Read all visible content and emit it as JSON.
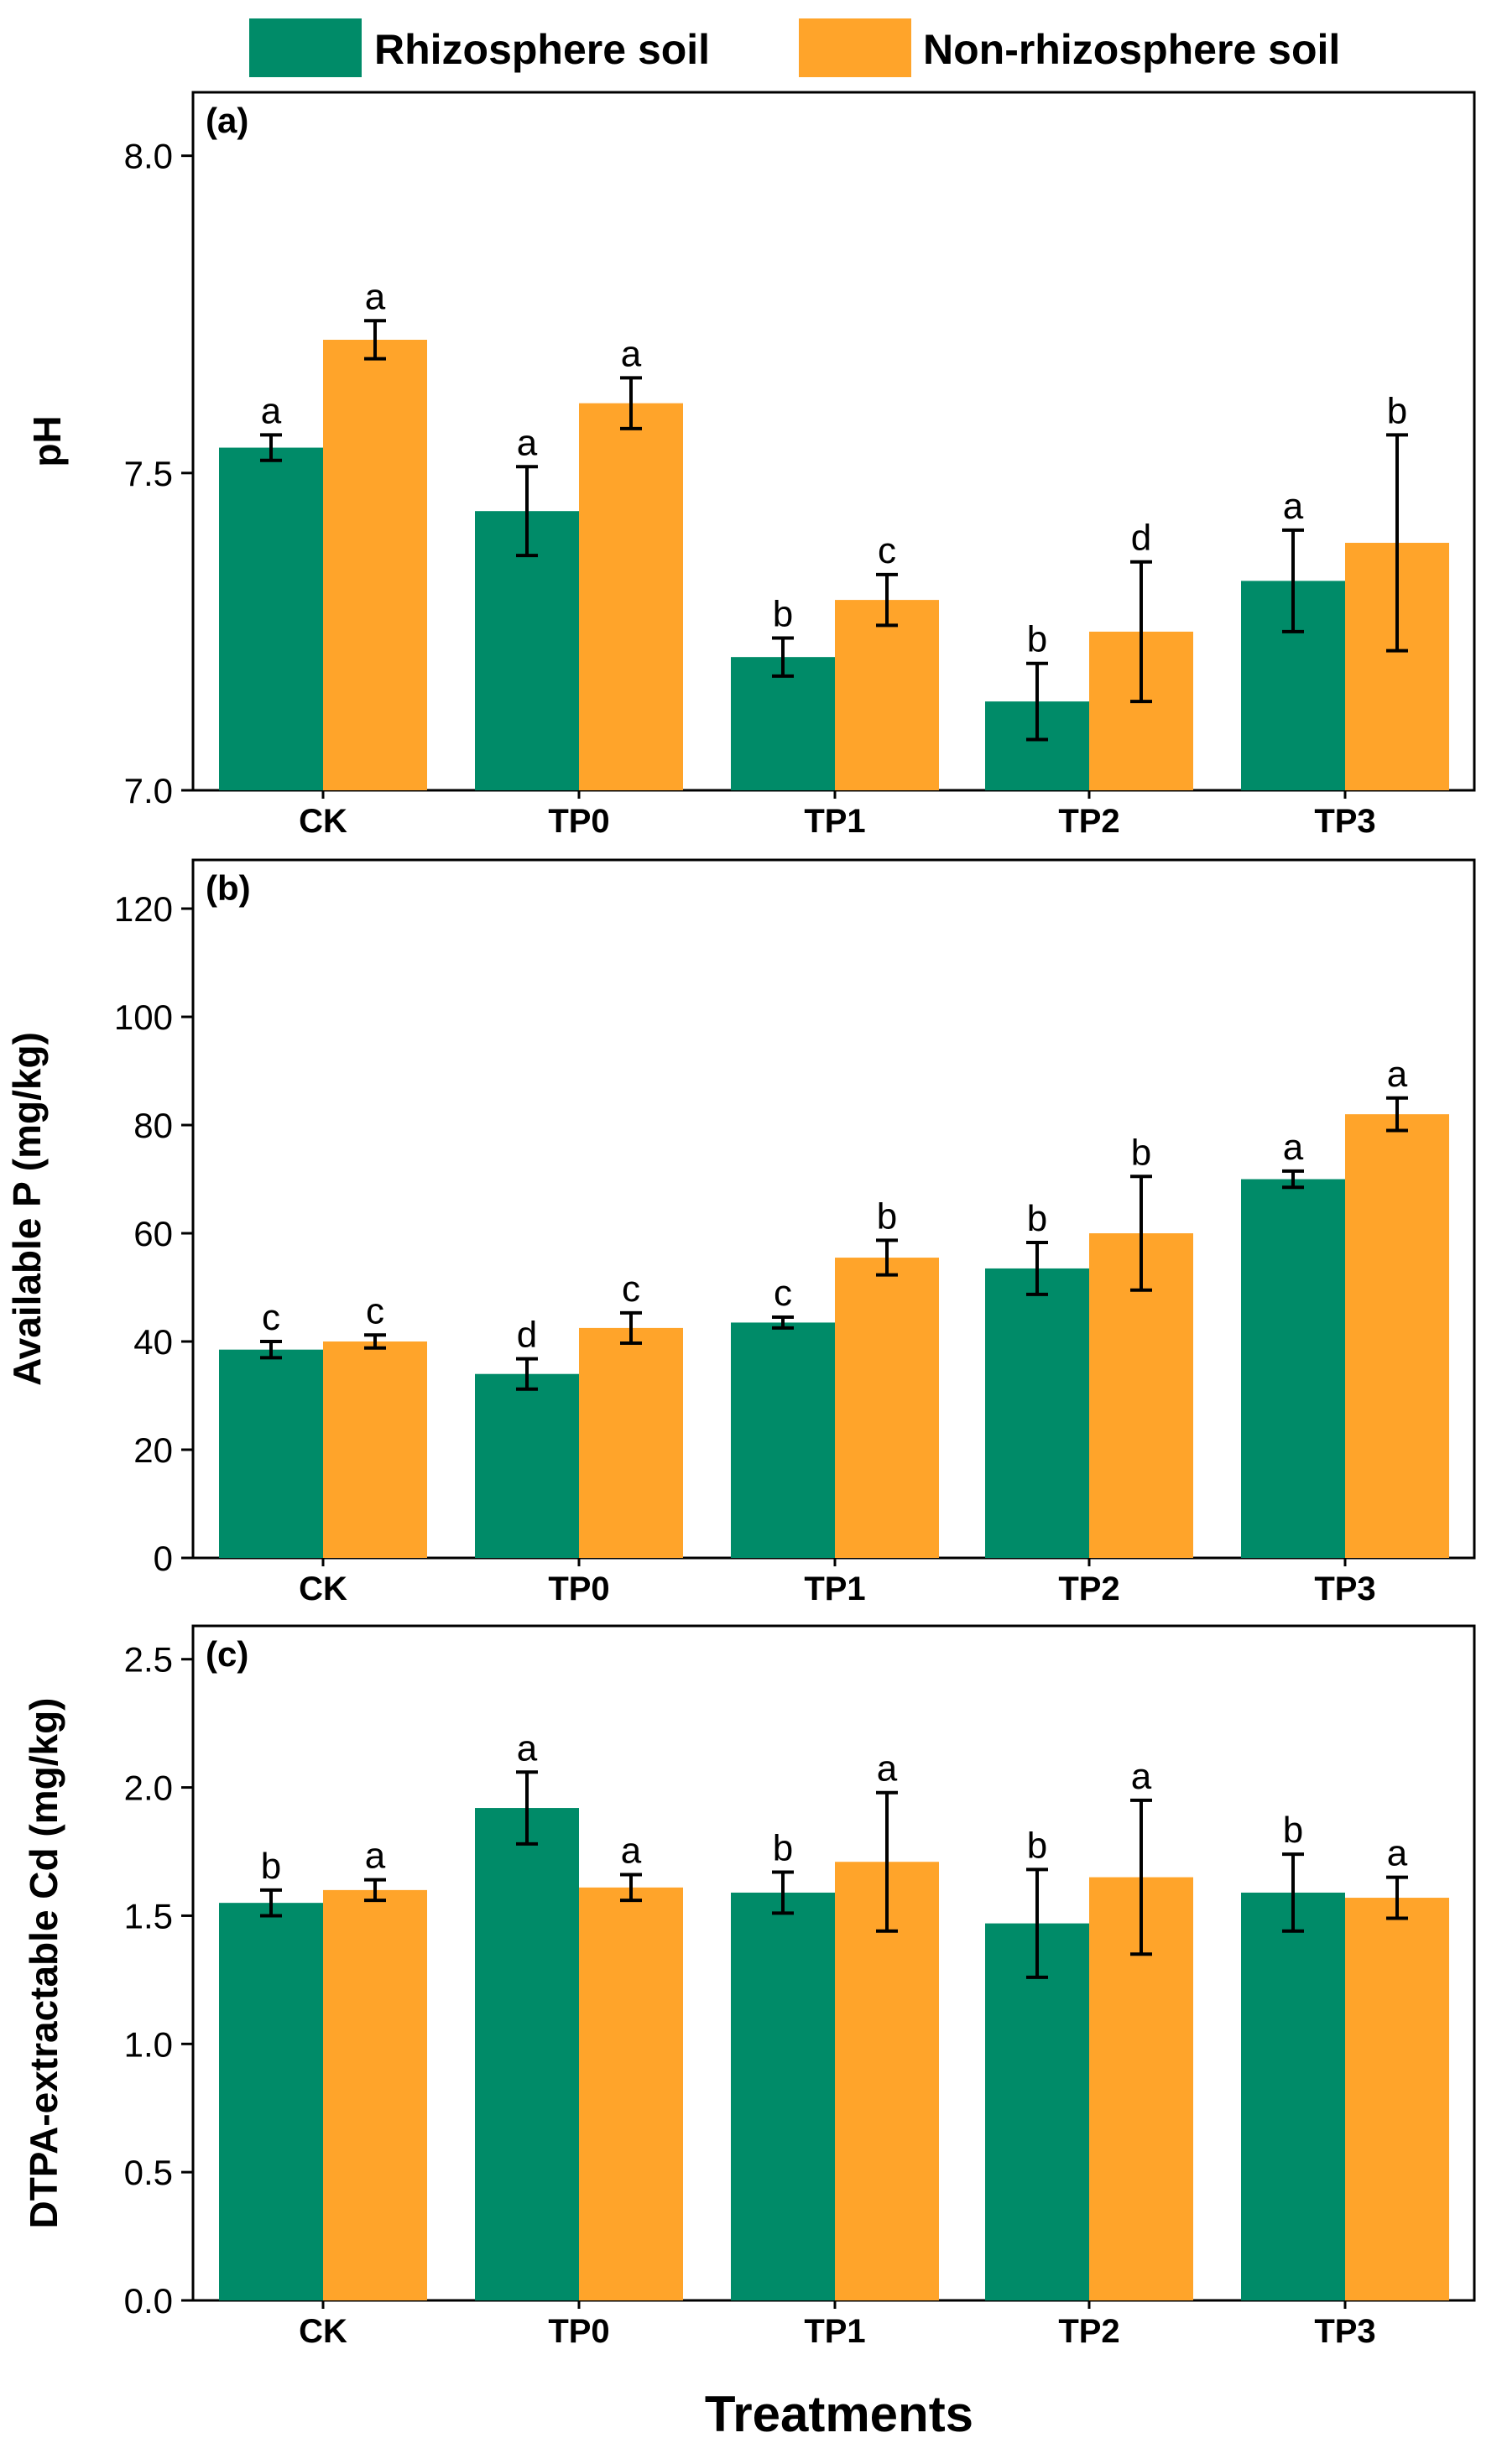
{
  "legend": {
    "items": [
      {
        "name": "Rhizosphere soil",
        "color": "#008b68"
      },
      {
        "name": "Non-rhizosphere soil",
        "color": "#ffa42a"
      }
    ]
  },
  "x_title": "Treatments",
  "chart_data": [
    {
      "type": "bar",
      "panel": "(a)",
      "ylabel": "pH",
      "ylim": [
        7.0,
        8.1
      ],
      "yticks": [
        7.0,
        7.5,
        8.0
      ],
      "tick_format": 1,
      "categories": [
        "CK",
        "TP0",
        "TP1",
        "TP2",
        "TP3"
      ],
      "series": [
        {
          "name": "Rhizosphere soil",
          "values": [
            7.54,
            7.44,
            7.21,
            7.14,
            7.33
          ],
          "errors": [
            0.02,
            0.07,
            0.03,
            0.06,
            0.08
          ],
          "letters": [
            "a",
            "a",
            "b",
            "b",
            "a"
          ]
        },
        {
          "name": "Non-rhizosphere soil",
          "values": [
            7.71,
            7.61,
            7.3,
            7.25,
            7.39
          ],
          "errors": [
            0.03,
            0.04,
            0.04,
            0.11,
            0.17
          ],
          "letters": [
            "a",
            "a",
            "c",
            "d",
            "b"
          ]
        }
      ]
    },
    {
      "type": "bar",
      "panel": "(b)",
      "ylabel": "Available P (mg/kg)",
      "ylim": [
        0,
        129
      ],
      "yticks": [
        0,
        20,
        40,
        60,
        80,
        100,
        120
      ],
      "tick_format": 0,
      "categories": [
        "CK",
        "TP0",
        "TP1",
        "TP2",
        "TP3"
      ],
      "series": [
        {
          "name": "Rhizosphere soil",
          "values": [
            38.5,
            34.0,
            43.5,
            53.5,
            70.0
          ],
          "errors": [
            1.5,
            2.8,
            1.0,
            4.8,
            1.5
          ],
          "letters": [
            "c",
            "d",
            "c",
            "b",
            "a"
          ]
        },
        {
          "name": "Non-rhizosphere soil",
          "values": [
            40.0,
            42.5,
            55.5,
            60.0,
            82.0
          ],
          "errors": [
            1.2,
            2.8,
            3.2,
            10.5,
            3.0
          ],
          "letters": [
            "c",
            "c",
            "b",
            "b",
            "a"
          ]
        }
      ]
    },
    {
      "type": "bar",
      "panel": "(c)",
      "ylabel": "DTPA-extractable Cd (mg/kg)",
      "ylim": [
        0.0,
        2.63
      ],
      "yticks": [
        0.0,
        0.5,
        1.0,
        1.5,
        2.0,
        2.5
      ],
      "tick_format": 1,
      "categories": [
        "CK",
        "TP0",
        "TP1",
        "TP2",
        "TP3"
      ],
      "series": [
        {
          "name": "Rhizosphere soil",
          "values": [
            1.55,
            1.92,
            1.59,
            1.47,
            1.59
          ],
          "errors": [
            0.05,
            0.14,
            0.08,
            0.21,
            0.15
          ],
          "letters": [
            "b",
            "a",
            "b",
            "b",
            "b"
          ]
        },
        {
          "name": "Non-rhizosphere soil",
          "values": [
            1.6,
            1.61,
            1.71,
            1.65,
            1.57
          ],
          "errors": [
            0.04,
            0.05,
            0.27,
            0.3,
            0.08
          ],
          "letters": [
            "a",
            "a",
            "a",
            "a",
            "a"
          ]
        }
      ]
    }
  ]
}
